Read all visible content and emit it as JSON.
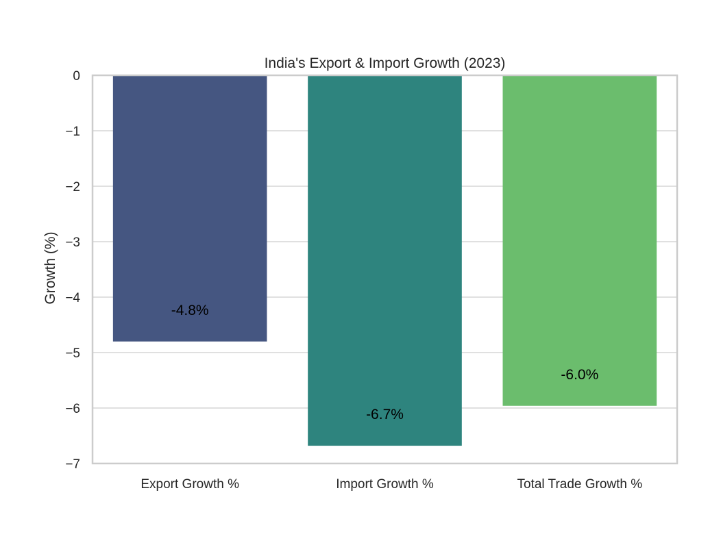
{
  "chart_data": {
    "type": "bar",
    "title": "India's Export & Import Growth (2023)",
    "xlabel": "",
    "ylabel": "Growth (%)",
    "categories": [
      "Export Growth %",
      "Import Growth %",
      "Total Trade Growth %"
    ],
    "values": [
      -4.8,
      -6.68,
      -5.96
    ],
    "data_labels": [
      "-4.8%",
      "-6.7%",
      "-6.0%"
    ],
    "colors": [
      "#455681",
      "#2e847e",
      "#6bbd6d"
    ],
    "ylim": [
      -7,
      0
    ],
    "yticks": [
      0,
      -1,
      -2,
      -3,
      -4,
      -5,
      -6,
      -7
    ],
    "ytick_labels": [
      "0",
      "−1",
      "−2",
      "−3",
      "−4",
      "−5",
      "−6",
      "−7"
    ],
    "grid": true,
    "grid_color": "#d5d5d5",
    "frame_color": "#cccccc"
  }
}
